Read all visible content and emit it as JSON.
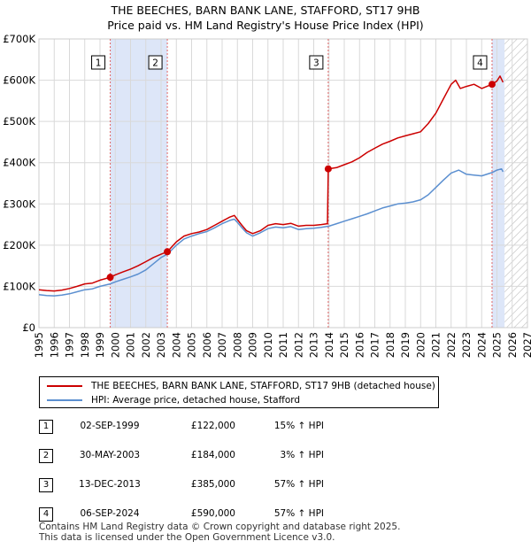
{
  "title": "THE BEECHES, BARN BANK LANE, STAFFORD, ST17 9HB",
  "subtitle": "Price paid vs. HM Land Registry's House Price Index (HPI)",
  "colors": {
    "property": "#cc0000",
    "hpi": "#5b8fd0",
    "shade": "#dde6f8",
    "vline": "#e06666",
    "grid": "#d9d9d9"
  },
  "chart_data": {
    "type": "line",
    "title": "THE BEECHES, BARN BANK LANE, STAFFORD, ST17 9HB",
    "subtitle": "Price paid vs. HM Land Registry's House Price Index (HPI)",
    "xlim": [
      1995,
      2027
    ],
    "ylim": [
      0,
      700000
    ],
    "x_ticks": [
      "1995",
      "1996",
      "1997",
      "1998",
      "1999",
      "2000",
      "2001",
      "2002",
      "2003",
      "2004",
      "2005",
      "2006",
      "2007",
      "2008",
      "2009",
      "2010",
      "2011",
      "2012",
      "2013",
      "2014",
      "2015",
      "2016",
      "2017",
      "2018",
      "2019",
      "2020",
      "2021",
      "2022",
      "2023",
      "2024",
      "2025",
      "2026",
      "2027"
    ],
    "y_ticks": [
      {
        "value": 0,
        "label": "£0"
      },
      {
        "value": 100000,
        "label": "£100K"
      },
      {
        "value": 200000,
        "label": "£200K"
      },
      {
        "value": 300000,
        "label": "£300K"
      },
      {
        "value": 400000,
        "label": "£400K"
      },
      {
        "value": 500000,
        "label": "£500K"
      },
      {
        "value": 600000,
        "label": "£600K"
      },
      {
        "value": 700000,
        "label": "£700K"
      }
    ],
    "shaded_ranges": [
      [
        1999.67,
        2003.41
      ],
      [
        2024.68,
        2025.5
      ]
    ],
    "hatched_from": 2025.5,
    "series": [
      {
        "name": "THE BEECHES, BARN BANK LANE, STAFFORD, ST17 9HB (detached house)",
        "color": "#cc0000",
        "points": [
          [
            1995,
            92000
          ],
          [
            1995.5,
            90000
          ],
          [
            1996,
            89000
          ],
          [
            1996.5,
            91000
          ],
          [
            1997,
            95000
          ],
          [
            1997.5,
            100000
          ],
          [
            1998,
            106000
          ],
          [
            1998.5,
            108000
          ],
          [
            1999,
            115000
          ],
          [
            1999.67,
            122000
          ],
          [
            2000,
            128000
          ],
          [
            2000.5,
            135000
          ],
          [
            2001,
            142000
          ],
          [
            2001.5,
            150000
          ],
          [
            2002,
            160000
          ],
          [
            2002.5,
            170000
          ],
          [
            2003,
            178000
          ],
          [
            2003.41,
            184000
          ],
          [
            2004,
            208000
          ],
          [
            2004.5,
            222000
          ],
          [
            2005,
            228000
          ],
          [
            2005.5,
            232000
          ],
          [
            2006,
            238000
          ],
          [
            2006.5,
            248000
          ],
          [
            2007,
            258000
          ],
          [
            2007.5,
            268000
          ],
          [
            2007.8,
            272000
          ],
          [
            2008,
            262000
          ],
          [
            2008.3,
            248000
          ],
          [
            2008.6,
            235000
          ],
          [
            2009,
            228000
          ],
          [
            2009.5,
            235000
          ],
          [
            2010,
            248000
          ],
          [
            2010.5,
            252000
          ],
          [
            2011,
            250000
          ],
          [
            2011.5,
            253000
          ],
          [
            2012,
            246000
          ],
          [
            2012.5,
            248000
          ],
          [
            2013,
            248000
          ],
          [
            2013.5,
            250000
          ],
          [
            2013.9,
            252000
          ],
          [
            2013.95,
            385000
          ],
          [
            2014.5,
            388000
          ],
          [
            2015,
            395000
          ],
          [
            2015.5,
            402000
          ],
          [
            2016,
            412000
          ],
          [
            2016.5,
            425000
          ],
          [
            2017,
            435000
          ],
          [
            2017.5,
            445000
          ],
          [
            2018,
            452000
          ],
          [
            2018.5,
            460000
          ],
          [
            2019,
            465000
          ],
          [
            2019.5,
            470000
          ],
          [
            2020,
            475000
          ],
          [
            2020.5,
            495000
          ],
          [
            2021,
            520000
          ],
          [
            2021.5,
            555000
          ],
          [
            2022,
            590000
          ],
          [
            2022.3,
            600000
          ],
          [
            2022.6,
            580000
          ],
          [
            2023,
            585000
          ],
          [
            2023.5,
            590000
          ],
          [
            2024,
            580000
          ],
          [
            2024.68,
            590000
          ],
          [
            2025,
            598000
          ],
          [
            2025.2,
            610000
          ],
          [
            2025.4,
            595000
          ]
        ]
      },
      {
        "name": "HPI: Average price, detached house, Stafford",
        "color": "#5b8fd0",
        "points": [
          [
            1995,
            80000
          ],
          [
            1995.5,
            78000
          ],
          [
            1996,
            77000
          ],
          [
            1996.5,
            79000
          ],
          [
            1997,
            82000
          ],
          [
            1997.5,
            87000
          ],
          [
            1998,
            92000
          ],
          [
            1998.5,
            94000
          ],
          [
            1999,
            100000
          ],
          [
            1999.67,
            106000
          ],
          [
            2000,
            111000
          ],
          [
            2000.5,
            117000
          ],
          [
            2001,
            123000
          ],
          [
            2001.5,
            130000
          ],
          [
            2002,
            140000
          ],
          [
            2002.5,
            155000
          ],
          [
            2003,
            170000
          ],
          [
            2003.41,
            178000
          ],
          [
            2004,
            200000
          ],
          [
            2004.5,
            215000
          ],
          [
            2005,
            222000
          ],
          [
            2005.5,
            228000
          ],
          [
            2006,
            233000
          ],
          [
            2006.5,
            242000
          ],
          [
            2007,
            252000
          ],
          [
            2007.5,
            260000
          ],
          [
            2007.8,
            263000
          ],
          [
            2008,
            255000
          ],
          [
            2008.3,
            242000
          ],
          [
            2008.6,
            230000
          ],
          [
            2009,
            222000
          ],
          [
            2009.5,
            230000
          ],
          [
            2010,
            240000
          ],
          [
            2010.5,
            244000
          ],
          [
            2011,
            242000
          ],
          [
            2011.5,
            245000
          ],
          [
            2012,
            238000
          ],
          [
            2012.5,
            240000
          ],
          [
            2013,
            241000
          ],
          [
            2013.5,
            243000
          ],
          [
            2014,
            246000
          ],
          [
            2014.5,
            252000
          ],
          [
            2015,
            258000
          ],
          [
            2015.5,
            264000
          ],
          [
            2016,
            270000
          ],
          [
            2016.5,
            276000
          ],
          [
            2017,
            283000
          ],
          [
            2017.5,
            290000
          ],
          [
            2018,
            295000
          ],
          [
            2018.5,
            300000
          ],
          [
            2019,
            302000
          ],
          [
            2019.5,
            305000
          ],
          [
            2020,
            310000
          ],
          [
            2020.5,
            322000
          ],
          [
            2021,
            340000
          ],
          [
            2021.5,
            358000
          ],
          [
            2022,
            375000
          ],
          [
            2022.5,
            382000
          ],
          [
            2023,
            372000
          ],
          [
            2023.5,
            370000
          ],
          [
            2024,
            368000
          ],
          [
            2024.68,
            376000
          ],
          [
            2025,
            382000
          ],
          [
            2025.3,
            385000
          ],
          [
            2025.4,
            378000
          ]
        ]
      }
    ],
    "sales": [
      {
        "num": "1",
        "x": 1999.67,
        "price": 122000
      },
      {
        "num": "2",
        "x": 2003.41,
        "price": 184000
      },
      {
        "num": "3",
        "x": 2013.95,
        "price": 385000
      },
      {
        "num": "4",
        "x": 2024.68,
        "price": 590000
      }
    ]
  },
  "legend": {
    "property_label": "THE BEECHES, BARN BANK LANE, STAFFORD, ST17 9HB (detached house)",
    "hpi_label": "HPI: Average price, detached house, Stafford"
  },
  "transactions": [
    {
      "num": "1",
      "date": "02-SEP-1999",
      "price": "£122,000",
      "hpi": "15% ↑ HPI"
    },
    {
      "num": "2",
      "date": "30-MAY-2003",
      "price": "£184,000",
      "hpi": "3% ↑ HPI"
    },
    {
      "num": "3",
      "date": "13-DEC-2013",
      "price": "£385,000",
      "hpi": "57% ↑ HPI"
    },
    {
      "num": "4",
      "date": "06-SEP-2024",
      "price": "£590,000",
      "hpi": "57% ↑ HPI"
    }
  ],
  "footer": {
    "line1": "Contains HM Land Registry data © Crown copyright and database right 2025.",
    "line2": "This data is licensed under the Open Government Licence v3.0."
  }
}
